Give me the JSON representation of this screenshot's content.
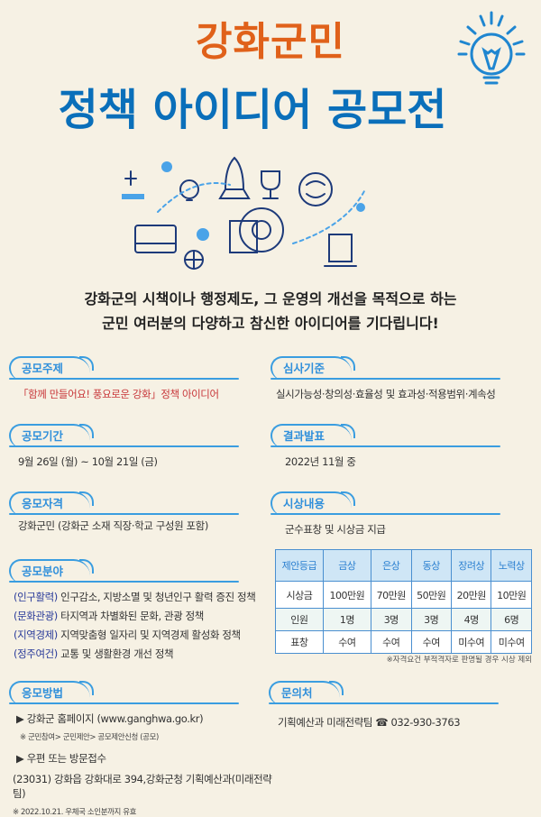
{
  "header": {
    "title_line1": "강화군민",
    "title_line2": "정책 아이디어 공모전"
  },
  "icons": {
    "bulb": "lightbulb-icon",
    "illustration": "idea-tech-illustration"
  },
  "colors": {
    "title_orange": "#e0611a",
    "title_blue": "#0a6fba",
    "accent": "#3a9de0",
    "background": "#f6f1e4"
  },
  "intro": {
    "line1": "강화군의 시책이나 행정제도, 그 운영의 개선을 목적으로 하는",
    "line2": "군민 여러분의 다양하고 참신한 아이디어를 기다립니다!"
  },
  "theme": {
    "label": "공모주제",
    "text": "「함께 만들어요! 풍요로운 강화」정책 아이디어"
  },
  "period": {
    "label": "공모기간",
    "text": "9월 26일 (월) ~ 10월 21일 (금)"
  },
  "eligibility": {
    "label": "응모자격",
    "text": "강화군민 (강화군 소재 직장·학교 구성원 포함)"
  },
  "fields": {
    "label": "공모분야",
    "items": [
      {
        "tag": "(인구활력)",
        "text": "인구감소, 지방소멸 및 청년인구 활력 증진 정책"
      },
      {
        "tag": "(문화관광)",
        "text": "타지역과 차별화된 문화, 관광 정책"
      },
      {
        "tag": "(지역경제)",
        "text": "지역맞춤형 일자리 및 지역경제 활성화 정책"
      },
      {
        "tag": "(정주여건)",
        "text": "교통 및 생활환경 개선 정책"
      }
    ]
  },
  "criteria": {
    "label": "심사기준",
    "text": "실시가능성·창의성·효율성 및 효과성·적용범위·계속성"
  },
  "result": {
    "label": "결과발표",
    "text": "2022년 11월 중"
  },
  "awards": {
    "label": "시상내용",
    "text": "군수표창 및 시상금 지급",
    "headers": [
      "제안등급",
      "금상",
      "은상",
      "동상",
      "장려상",
      "노력상"
    ],
    "rows": [
      [
        "시상금",
        "100만원",
        "70만원",
        "50만원",
        "20만원",
        "10만원"
      ],
      [
        "인원",
        "1명",
        "3명",
        "3명",
        "4명",
        "6명"
      ],
      [
        "표창",
        "수여",
        "수여",
        "수여",
        "미수여",
        "미수여"
      ]
    ],
    "note": "※자격요건 부적격자로 판명될 경우 시상 제외"
  },
  "method": {
    "label": "응모방법",
    "web": "▶  강화군 홈페이지 (www.ganghwa.go.kr)",
    "web_note": "※ 군민참여> 군민제안> 공모제안신청 (공모)",
    "post": "▶  우편 또는 방문접수",
    "address": "(23031) 강화읍 강화대로 394,강화군청 기획예산과(미래전략팀)",
    "post_note": "※ 2022.10.21. 우체국 소인분까지 유효"
  },
  "contact": {
    "label": "문의처",
    "text": "기획예산과 미래전략팀 ☎ 032-930-3763"
  }
}
